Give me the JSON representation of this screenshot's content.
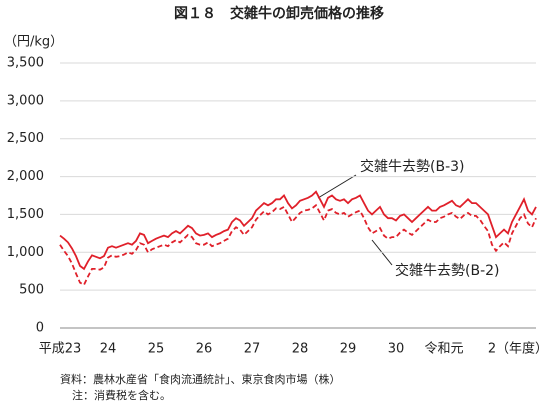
{
  "chart_data": {
    "type": "line",
    "title": "図１８　交雑牛の卸売価格の推移",
    "y_label": "（円/kg）",
    "x_label": "（年度）",
    "source": "資料：農林水産省「食肉流通統計」、東京食肉市場（株）",
    "note": "注：消費税を含む。",
    "categories": [
      "平成23",
      null,
      null,
      null,
      null,
      null,
      null,
      null,
      null,
      null,
      null,
      null,
      "24",
      null,
      null,
      null,
      null,
      null,
      null,
      null,
      null,
      null,
      null,
      null,
      "25",
      null,
      null,
      null,
      null,
      null,
      null,
      null,
      null,
      null,
      null,
      null,
      "26",
      null,
      null,
      null,
      null,
      null,
      null,
      null,
      null,
      null,
      null,
      null,
      "27",
      null,
      null,
      null,
      null,
      null,
      null,
      null,
      null,
      null,
      null,
      null,
      "28",
      null,
      null,
      null,
      null,
      null,
      null,
      null,
      null,
      null,
      null,
      null,
      "29",
      null,
      null,
      null,
      null,
      null,
      null,
      null,
      null,
      null,
      null,
      null,
      "30",
      null,
      null,
      null,
      null,
      null,
      null,
      null,
      null,
      null,
      null,
      null,
      "令和元",
      null,
      null,
      null,
      null,
      null,
      null,
      null,
      null,
      null,
      null,
      null,
      "2",
      null,
      null,
      null,
      null,
      null,
      null,
      null,
      null,
      null,
      null,
      null
    ],
    "series": [
      {
        "name": "交雑牛去勢(B-3)",
        "color": "#e0202a",
        "dash": false,
        "values": [
          1220,
          1180,
          1130,
          1050,
          950,
          820,
          780,
          880,
          960,
          940,
          920,
          950,
          1060,
          1080,
          1060,
          1080,
          1100,
          1120,
          1100,
          1150,
          1250,
          1230,
          1120,
          1150,
          1180,
          1200,
          1220,
          1200,
          1250,
          1280,
          1250,
          1300,
          1350,
          1320,
          1250,
          1220,
          1230,
          1250,
          1200,
          1230,
          1250,
          1280,
          1300,
          1400,
          1450,
          1420,
          1350,
          1400,
          1450,
          1550,
          1600,
          1650,
          1620,
          1650,
          1700,
          1700,
          1750,
          1650,
          1580,
          1620,
          1680,
          1700,
          1720,
          1750,
          1800,
          1700,
          1600,
          1720,
          1750,
          1700,
          1680,
          1700,
          1650,
          1700,
          1720,
          1750,
          1650,
          1550,
          1500,
          1550,
          1600,
          1500,
          1450,
          1450,
          1420,
          1480,
          1500,
          1450,
          1400,
          1450,
          1500,
          1550,
          1600,
          1550,
          1550,
          1600,
          1620,
          1650,
          1680,
          1620,
          1600,
          1650,
          1700,
          1650,
          1650,
          1600,
          1550,
          1500,
          1350,
          1200,
          1250,
          1300,
          1250,
          1400,
          1500,
          1600,
          1700,
          1550,
          1500,
          1600
        ]
      },
      {
        "name": "交雑牛去勢(B-2)",
        "color": "#e0202a",
        "dash": true,
        "values": [
          1100,
          1020,
          950,
          850,
          720,
          600,
          570,
          680,
          780,
          780,
          770,
          800,
          930,
          960,
          940,
          950,
          970,
          1000,
          980,
          1030,
          1120,
          1100,
          1000,
          1040,
          1060,
          1080,
          1100,
          1080,
          1130,
          1160,
          1130,
          1180,
          1230,
          1200,
          1120,
          1100,
          1100,
          1130,
          1080,
          1100,
          1120,
          1150,
          1180,
          1280,
          1330,
          1300,
          1230,
          1280,
          1330,
          1430,
          1490,
          1540,
          1500,
          1530,
          1580,
          1570,
          1600,
          1500,
          1400,
          1460,
          1520,
          1550,
          1560,
          1580,
          1620,
          1520,
          1420,
          1550,
          1570,
          1520,
          1500,
          1520,
          1470,
          1500,
          1530,
          1550,
          1450,
          1330,
          1250,
          1280,
          1320,
          1220,
          1180,
          1200,
          1200,
          1260,
          1300,
          1260,
          1230,
          1280,
          1330,
          1380,
          1430,
          1400,
          1400,
          1450,
          1470,
          1500,
          1520,
          1470,
          1440,
          1490,
          1520,
          1480,
          1480,
          1430,
          1350,
          1280,
          1100,
          1020,
          1080,
          1130,
          1080,
          1250,
          1350,
          1450,
          1500,
          1380,
          1330,
          1450
        ]
      }
    ],
    "ylim": [
      0,
      3500
    ],
    "yticks": [
      0,
      {
        "value": 500,
        "label": "500"
      },
      {
        "value": 1000,
        "label": "1,000"
      },
      {
        "value": 1500,
        "label": "1,500"
      },
      {
        "value": 2000,
        "label": "2,000"
      },
      {
        "value": 2500,
        "label": "2,500"
      },
      {
        "value": 3000,
        "label": "3,000"
      },
      {
        "value": 3500,
        "label": "3,500"
      }
    ],
    "grid": true
  }
}
